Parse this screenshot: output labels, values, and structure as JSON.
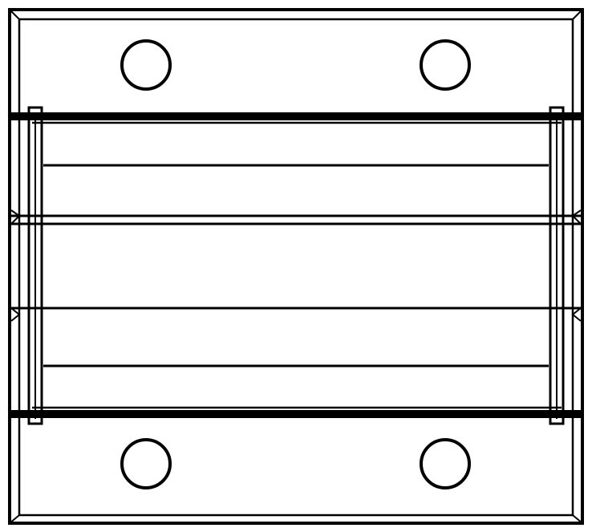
{
  "drawing": {
    "type": "technical-line-drawing",
    "stroke_color": "#000000",
    "background_color": "#ffffff",
    "mounting_hole_count": 4
  }
}
